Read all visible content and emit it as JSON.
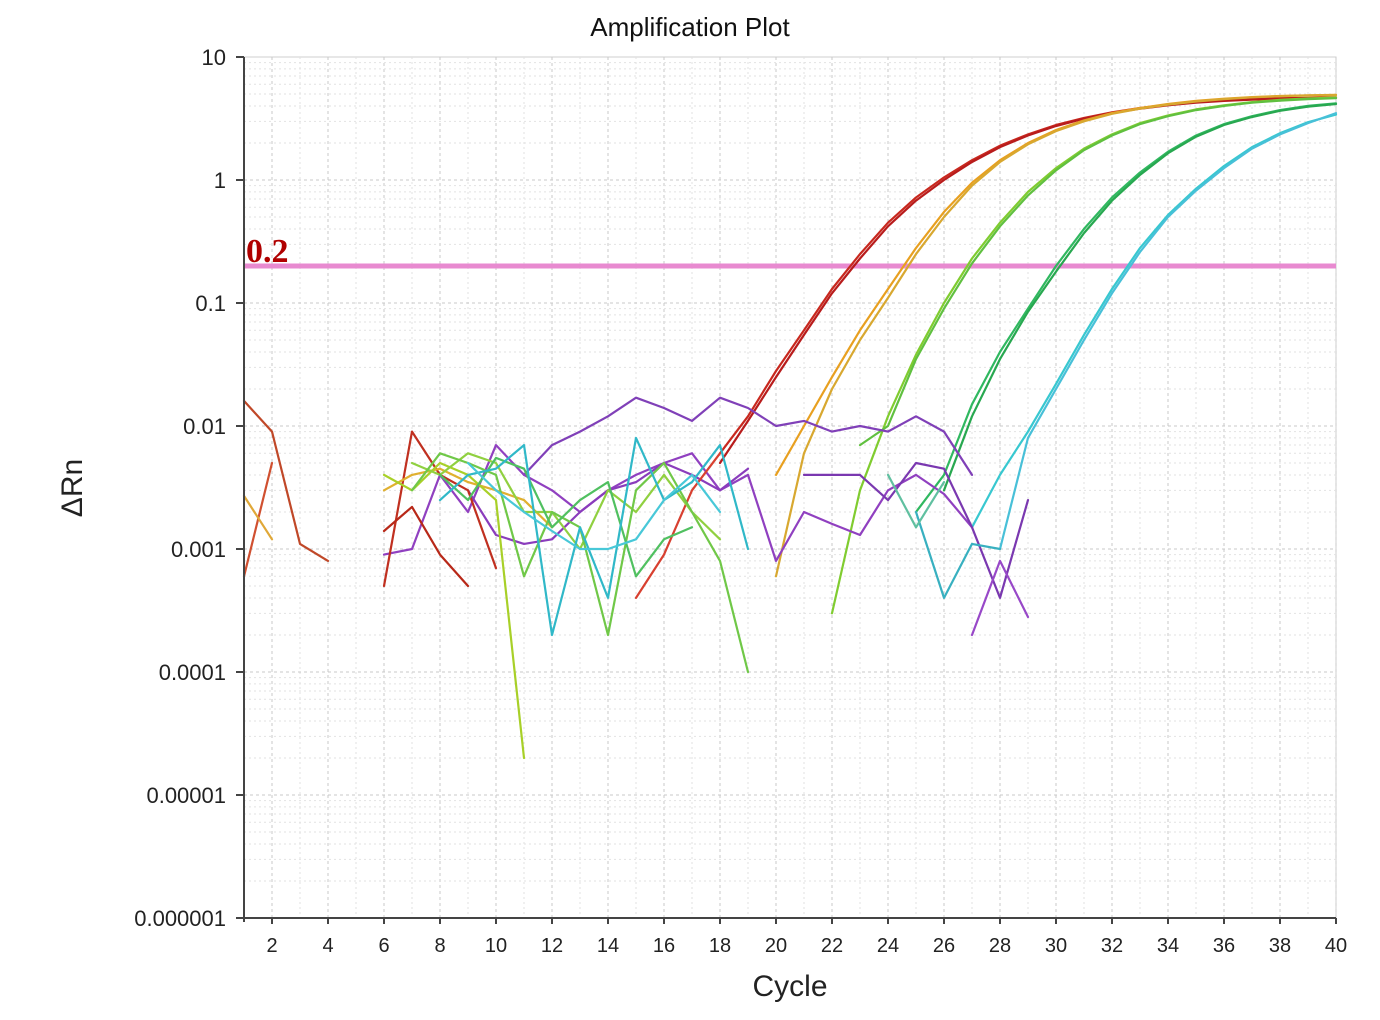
{
  "chart_data": {
    "type": "line",
    "title": "Amplification Plot",
    "xlabel": "Cycle",
    "ylabel": "ΔRn",
    "xlim": [
      1,
      40
    ],
    "ylim": [
      1e-06,
      10
    ],
    "yscale": "log",
    "grid": true,
    "xticks": [
      2,
      4,
      6,
      8,
      10,
      12,
      14,
      16,
      18,
      20,
      22,
      24,
      26,
      28,
      30,
      32,
      34,
      36,
      38,
      40
    ],
    "yticks": [
      10,
      1,
      0.1,
      0.01,
      0.001,
      0.0001,
      1e-05,
      1e-06
    ],
    "ytick_labels": [
      "10",
      "1",
      "0.1",
      "0.01",
      "0.001",
      "0.0001",
      "0.00001",
      "0.000001"
    ],
    "threshold": {
      "value": 0.2,
      "label": "0.2",
      "color": "#e88ad0"
    },
    "series": [
      {
        "color": "#c8281e",
        "x": [
          18,
          19,
          20,
          21,
          22,
          23,
          24,
          25,
          26,
          27,
          28,
          29,
          30,
          31,
          32,
          33,
          34,
          35,
          36,
          37,
          38,
          39,
          40
        ],
        "y": [
          0.006,
          0.012,
          0.028,
          0.06,
          0.13,
          0.25,
          0.45,
          0.72,
          1.05,
          1.45,
          1.9,
          2.35,
          2.8,
          3.2,
          3.55,
          3.85,
          4.1,
          4.3,
          4.45,
          4.55,
          4.62,
          4.66,
          4.7
        ]
      },
      {
        "color": "#b81c1c",
        "x": [
          18,
          19,
          20,
          21,
          22,
          23,
          24,
          25,
          26,
          27,
          28,
          29,
          30,
          31,
          32,
          33,
          34,
          35,
          36,
          37,
          38,
          39,
          40
        ],
        "y": [
          0.005,
          0.011,
          0.025,
          0.055,
          0.12,
          0.23,
          0.42,
          0.68,
          1.0,
          1.4,
          1.85,
          2.3,
          2.75,
          3.15,
          3.5,
          3.8,
          4.05,
          4.25,
          4.4,
          4.5,
          4.58,
          4.62,
          4.66
        ]
      },
      {
        "color": "#e8a020",
        "x": [
          20,
          21,
          22,
          23,
          24,
          25,
          26,
          27,
          28,
          29,
          30,
          31,
          32,
          33,
          34,
          35,
          36,
          37,
          38,
          39,
          40
        ],
        "y": [
          0.004,
          0.01,
          0.025,
          0.06,
          0.13,
          0.28,
          0.55,
          0.95,
          1.45,
          2.0,
          2.55,
          3.05,
          3.5,
          3.85,
          4.15,
          4.4,
          4.58,
          4.72,
          4.82,
          4.88,
          4.92
        ]
      },
      {
        "color": "#d8a830",
        "x": [
          20,
          21,
          22,
          23,
          24,
          25,
          26,
          27,
          28,
          29,
          30,
          31,
          32,
          33,
          34,
          35,
          36,
          37,
          38,
          39,
          40
        ],
        "y": [
          0.0006,
          0.006,
          0.02,
          0.05,
          0.11,
          0.25,
          0.5,
          0.9,
          1.4,
          1.95,
          2.5,
          3.0,
          3.45,
          3.8,
          4.1,
          4.35,
          4.55,
          4.7,
          4.8,
          4.86,
          4.9
        ]
      },
      {
        "color": "#80cc30",
        "x": [
          22,
          23,
          24,
          25,
          26,
          27,
          28,
          29,
          30,
          31,
          32,
          33,
          34,
          35,
          36,
          37,
          38,
          39,
          40
        ],
        "y": [
          0.0003,
          0.003,
          0.012,
          0.038,
          0.1,
          0.23,
          0.45,
          0.8,
          1.25,
          1.8,
          2.35,
          2.9,
          3.35,
          3.75,
          4.05,
          4.3,
          4.48,
          4.6,
          4.68
        ]
      },
      {
        "color": "#60c040",
        "x": [
          23,
          24,
          25,
          26,
          27,
          28,
          29,
          30,
          31,
          32,
          33,
          34,
          35,
          36,
          37,
          38,
          39,
          40
        ],
        "y": [
          0.007,
          0.01,
          0.035,
          0.09,
          0.21,
          0.42,
          0.75,
          1.2,
          1.75,
          2.3,
          2.85,
          3.3,
          3.7,
          4.0,
          4.25,
          4.42,
          4.55,
          4.62
        ]
      },
      {
        "color": "#30b860",
        "x": [
          25,
          26,
          27,
          28,
          29,
          30,
          31,
          32,
          33,
          34,
          35,
          36,
          37,
          38,
          39,
          40
        ],
        "y": [
          0.002,
          0.004,
          0.015,
          0.04,
          0.09,
          0.2,
          0.4,
          0.72,
          1.15,
          1.7,
          2.3,
          2.85,
          3.3,
          3.7,
          4.0,
          4.2
        ]
      },
      {
        "color": "#28a850",
        "x": [
          26,
          27,
          28,
          29,
          30,
          31,
          32,
          33,
          34,
          35,
          36,
          37,
          38,
          39,
          40
        ],
        "y": [
          0.003,
          0.012,
          0.035,
          0.085,
          0.18,
          0.37,
          0.68,
          1.1,
          1.65,
          2.25,
          2.8,
          3.25,
          3.65,
          3.95,
          4.15
        ]
      },
      {
        "color": "#38c8d0",
        "x": [
          27,
          28,
          29,
          30,
          31,
          32,
          33,
          34,
          35,
          36,
          37,
          38,
          39,
          40
        ],
        "y": [
          0.0015,
          0.004,
          0.009,
          0.022,
          0.055,
          0.13,
          0.28,
          0.52,
          0.85,
          1.3,
          1.85,
          2.4,
          2.95,
          3.4
        ]
      },
      {
        "color": "#48c0d8",
        "x": [
          28,
          29,
          30,
          31,
          32,
          33,
          34,
          35,
          36,
          37,
          38,
          39,
          40
        ],
        "y": [
          0.001,
          0.008,
          0.02,
          0.05,
          0.12,
          0.26,
          0.5,
          0.82,
          1.25,
          1.8,
          2.35,
          2.9,
          3.5
        ]
      },
      {
        "color": "#8040b8",
        "x": [
          11,
          12,
          13,
          14,
          15,
          16,
          17,
          18,
          19,
          20,
          21,
          22,
          23,
          24,
          25,
          26,
          27
        ],
        "y": [
          0.004,
          0.007,
          0.009,
          0.012,
          0.017,
          0.014,
          0.011,
          0.017,
          0.014,
          0.01,
          0.011,
          0.009,
          0.01,
          0.009,
          0.012,
          0.009,
          0.004
        ]
      },
      {
        "color": "#9040c0",
        "x": [
          6,
          7,
          8,
          9,
          10,
          11,
          12,
          13,
          14,
          15,
          16,
          17,
          18,
          19,
          20,
          21,
          22,
          23,
          24,
          25,
          26,
          27
        ],
        "y": [
          0.0009,
          0.001,
          0.004,
          0.002,
          0.007,
          0.004,
          0.003,
          0.002,
          0.003,
          0.004,
          0.005,
          0.006,
          0.003,
          0.004,
          0.0008,
          0.002,
          0.0016,
          0.0013,
          0.003,
          0.004,
          0.0028,
          0.0015
        ]
      },
      {
        "color": "#7a38b0",
        "x": [
          21,
          22,
          23,
          24,
          25,
          26,
          27,
          28,
          29
        ],
        "y": [
          0.004,
          0.004,
          0.004,
          0.0025,
          0.005,
          0.0045,
          0.0015,
          0.0004,
          0.0025
        ]
      },
      {
        "color": "#8a3cbc",
        "x": [
          9,
          10,
          11,
          12,
          13,
          14,
          15,
          16,
          17,
          18,
          19
        ],
        "y": [
          0.003,
          0.0013,
          0.0011,
          0.0012,
          0.002,
          0.003,
          0.0035,
          0.005,
          0.004,
          0.003,
          0.0045
        ]
      },
      {
        "color": "#9848c8",
        "x": [
          27,
          28,
          29
        ],
        "y": [
          0.0002,
          0.0008,
          0.00028
        ]
      },
      {
        "color": "#c04828",
        "x": [
          1,
          2,
          3,
          4
        ],
        "y": [
          0.016,
          0.009,
          0.0011,
          0.0008
        ]
      },
      {
        "color": "#d05030",
        "x": [
          1,
          2
        ],
        "y": [
          0.0006,
          0.005
        ]
      },
      {
        "color": "#e0a838",
        "x": [
          1,
          2
        ],
        "y": [
          0.0027,
          0.0012
        ]
      },
      {
        "color": "#c03020",
        "x": [
          6,
          7,
          8,
          9,
          10
        ],
        "y": [
          0.0005,
          0.009,
          0.004,
          0.003,
          0.0007
        ]
      },
      {
        "color": "#b82818",
        "x": [
          6,
          7,
          8,
          9
        ],
        "y": [
          0.0014,
          0.0022,
          0.0009,
          0.0005
        ]
      },
      {
        "color": "#d84030",
        "x": [
          15,
          16,
          17,
          18
        ],
        "y": [
          0.0004,
          0.0009,
          0.003,
          0.006
        ]
      },
      {
        "color": "#e0b030",
        "x": [
          6,
          7,
          8,
          9,
          10,
          11,
          12
        ],
        "y": [
          0.003,
          0.004,
          0.0045,
          0.0035,
          0.003,
          0.0025,
          0.0015
        ]
      },
      {
        "color": "#a8d028",
        "x": [
          6,
          7,
          8,
          9,
          10,
          11
        ],
        "y": [
          0.004,
          0.003,
          0.005,
          0.004,
          0.0025,
          2e-05
        ]
      },
      {
        "color": "#90d040",
        "x": [
          7,
          8,
          9,
          10,
          11,
          12,
          13,
          14,
          15,
          16,
          17,
          18
        ],
        "y": [
          0.005,
          0.004,
          0.006,
          0.005,
          0.002,
          0.002,
          0.001,
          0.003,
          0.002,
          0.004,
          0.002,
          0.0012
        ]
      },
      {
        "color": "#70c848",
        "x": [
          7,
          8,
          9,
          10,
          11,
          12,
          13,
          14,
          15,
          16,
          17,
          18,
          19
        ],
        "y": [
          0.003,
          0.006,
          0.005,
          0.004,
          0.0006,
          0.002,
          0.0015,
          0.0002,
          0.003,
          0.005,
          0.002,
          0.0008,
          0.0001
        ]
      },
      {
        "color": "#50c060",
        "x": [
          8,
          9,
          10,
          11,
          12,
          13,
          14,
          15,
          16,
          17
        ],
        "y": [
          0.004,
          0.0025,
          0.0055,
          0.0045,
          0.0015,
          0.0025,
          0.0035,
          0.0006,
          0.0012,
          0.0015
        ]
      },
      {
        "color": "#30b8c8",
        "x": [
          8,
          9,
          10,
          11,
          12,
          13,
          14,
          15,
          16,
          17,
          18,
          19
        ],
        "y": [
          0.0025,
          0.004,
          0.0045,
          0.007,
          0.0002,
          0.0015,
          0.0004,
          0.008,
          0.0025,
          0.0035,
          0.007,
          0.001
        ]
      },
      {
        "color": "#48c8d8",
        "x": [
          9,
          10,
          11,
          12,
          13,
          14,
          15,
          16,
          17,
          18
        ],
        "y": [
          0.005,
          0.003,
          0.002,
          0.0014,
          0.001,
          0.001,
          0.0012,
          0.0025,
          0.004,
          0.002
        ]
      },
      {
        "color": "#38b0c0",
        "x": [
          25,
          26,
          27,
          28
        ],
        "y": [
          0.002,
          0.0004,
          0.0011,
          0.001
        ]
      },
      {
        "color": "#60c0a0",
        "x": [
          24,
          25,
          26
        ],
        "y": [
          0.004,
          0.0015,
          0.0035
        ]
      }
    ]
  }
}
